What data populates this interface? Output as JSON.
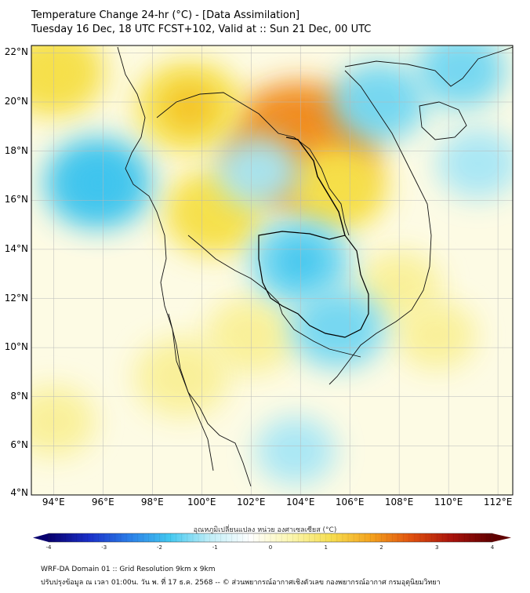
{
  "title": {
    "line1": "Temperature Change 24-hr (°C) - [Data Assimilation]",
    "line2": "Tuesday 16 Dec, 18 UTC FCST+102, Valid at :: Sun 21 Dec, 00 UTC"
  },
  "map": {
    "lat_labels": [
      "22°N",
      "20°N",
      "18°N",
      "16°N",
      "14°N",
      "12°N",
      "10°N",
      "8°N",
      "6°N",
      "4°N"
    ],
    "lon_labels": [
      "94°E",
      "96°E",
      "98°E",
      "100°E",
      "102°E",
      "104°E",
      "106°E",
      "108°E",
      "110°E",
      "112°E"
    ],
    "lat_range": [
      4,
      22.3
    ],
    "lon_range": [
      93.1,
      112.6
    ],
    "features": [
      {
        "name": "warm-hotspot-laos",
        "lon": 104.0,
        "lat": 18.2,
        "value": 2.6
      },
      {
        "name": "warm-north-myanmar",
        "lon": 99.5,
        "lat": 19.8,
        "value": 1.3
      },
      {
        "name": "warm-nw-corner",
        "lon": 94.0,
        "lat": 21.2,
        "value": 1.2
      },
      {
        "name": "warm-central-thailand",
        "lon": 100.5,
        "lat": 15.5,
        "value": 1.1
      },
      {
        "name": "warm-vietnam-north",
        "lon": 105.5,
        "lat": 16.5,
        "value": 1.1
      },
      {
        "name": "warm-south-vietnam-coast",
        "lon": 108.0,
        "lat": 12.5,
        "value": 0.6
      },
      {
        "name": "warm-gulf",
        "lon": 102.0,
        "lat": 10.5,
        "value": 0.8
      },
      {
        "name": "warm-malay",
        "lon": 99.2,
        "lat": 8.8,
        "value": 0.9
      },
      {
        "name": "warm-east-sea",
        "lon": 109.5,
        "lat": 10.5,
        "value": 0.5
      },
      {
        "name": "warm-southwest",
        "lon": 94.0,
        "lat": 7.0,
        "value": 0.6
      },
      {
        "name": "cool-cambodia",
        "lon": 104.0,
        "lat": 13.5,
        "value": -1.1
      },
      {
        "name": "cool-mekong-delta",
        "lon": 105.5,
        "lat": 10.8,
        "value": -0.9
      },
      {
        "name": "cool-andaman",
        "lon": 95.8,
        "lat": 16.7,
        "value": -1.3
      },
      {
        "name": "cool-gulf-tonkin",
        "lon": 107.2,
        "lat": 20.0,
        "value": -0.9
      },
      {
        "name": "cool-south-china-sea",
        "lon": 110.5,
        "lat": 21.3,
        "value": -0.8
      },
      {
        "name": "cool-hainan-east",
        "lon": 111.2,
        "lat": 17.5,
        "value": -0.6
      },
      {
        "name": "cool-central-north",
        "lon": 102.3,
        "lat": 17.2,
        "value": -0.6
      },
      {
        "name": "cool-south-sea",
        "lon": 103.8,
        "lat": 5.8,
        "value": -0.5
      }
    ]
  },
  "colorbar": {
    "label": "อุณหภูมิเปลี่ยนแปลง หน่วย องศาเซลเซียส (°C)",
    "min": -4,
    "max": 4,
    "ticks": [
      "-4",
      "-3",
      "-2",
      "-1",
      "0",
      "1",
      "2",
      "3",
      "4"
    ],
    "colors": [
      "#08006e",
      "#1a2fc8",
      "#2a7ee8",
      "#42c8f0",
      "#c0eef8",
      "#ffffff",
      "#fbf6b0",
      "#f6de50",
      "#f4a21e",
      "#e0500e",
      "#a8120c",
      "#600000"
    ]
  },
  "footer": {
    "line1": "WRF-DA Domain 01 :: Grid Resolution 9km x 9km",
    "line2": "ปรับปรุงข้อมูล ณ เวลา 01:00น. วัน พ. ที่ 17 ธ.ค. 2568 -- © ส่วนพยากรณ์อากาศเชิงตัวเลข กองพยากรณ์อากาศ กรมอุตุนิยมวิทยา"
  }
}
